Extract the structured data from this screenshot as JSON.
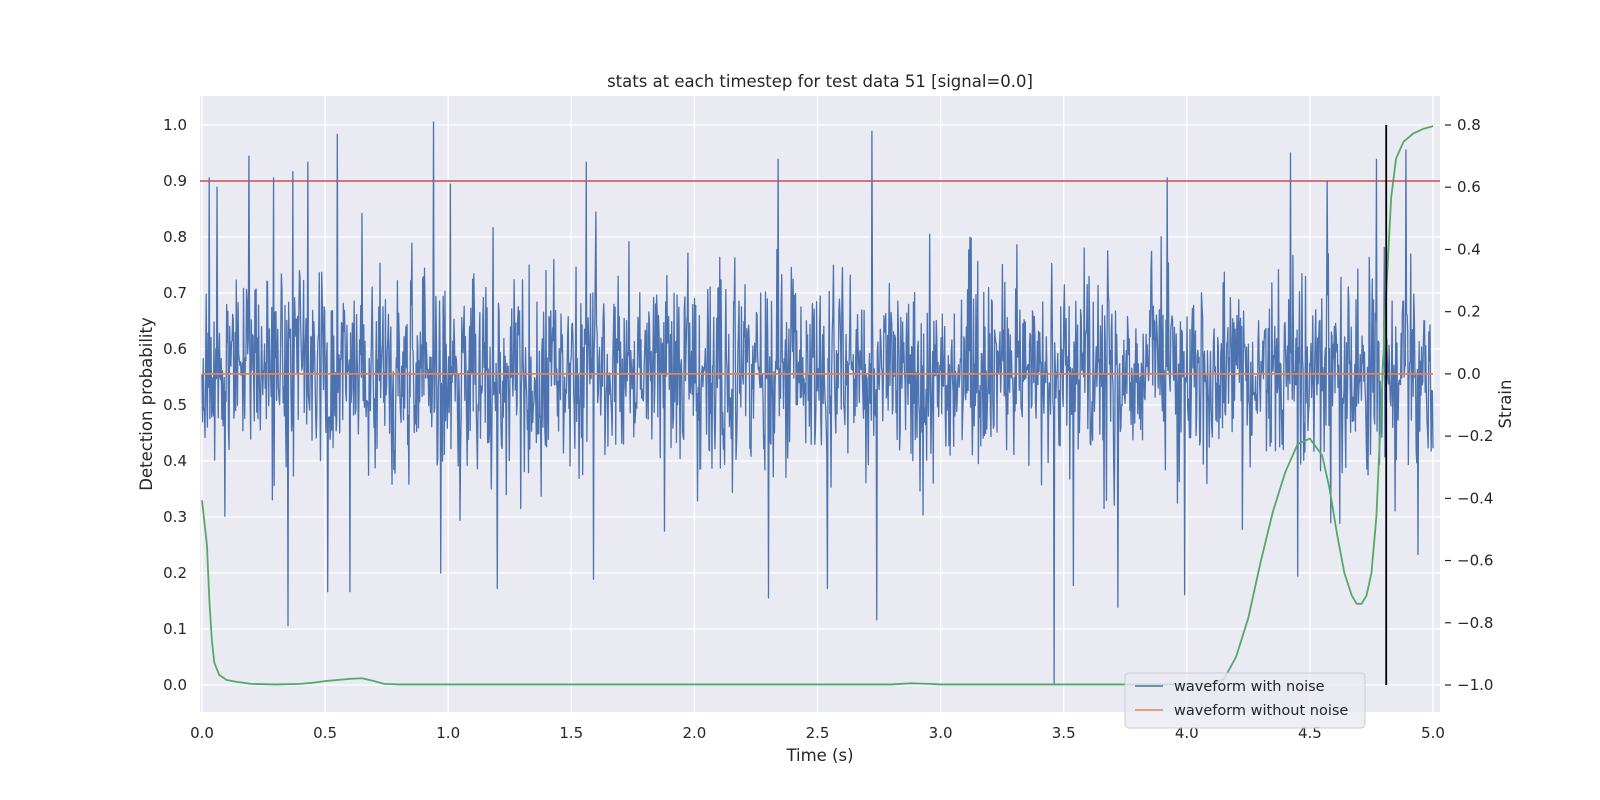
{
  "chart_data": {
    "type": "line",
    "title": "stats at each timestep for test data 51 [signal=0.0]",
    "xlabel": "Time (s)",
    "ylabel": "Detection probability",
    "y2label": "Strain",
    "xlim": [
      0.0,
      5.0
    ],
    "ylim": [
      0.0,
      1.0
    ],
    "y2lim": [
      -1.0,
      0.8
    ],
    "xticks": [
      "0.0",
      "0.5",
      "1.0",
      "1.5",
      "2.0",
      "2.5",
      "3.0",
      "3.5",
      "4.0",
      "4.5",
      "5.0"
    ],
    "yticks": [
      "0.0",
      "0.1",
      "0.2",
      "0.3",
      "0.4",
      "0.5",
      "0.6",
      "0.7",
      "0.8",
      "0.9",
      "1.0"
    ],
    "y2ticks": [
      "−1.0",
      "−0.8",
      "−0.6",
      "−0.4",
      "−0.2",
      "0.0",
      "0.2",
      "0.4",
      "0.6",
      "0.8"
    ],
    "grid": true,
    "legend_position": "lower-right",
    "colors": {
      "noisy": "#4c72b0",
      "clean": "#dd8452",
      "probability": "#55a868",
      "threshold": "#c44e52",
      "marker": "#000000",
      "background": "#eaeaf2"
    },
    "threshold": 0.9,
    "marker_time": 4.81,
    "series": [
      {
        "name": "waveform with noise",
        "axis": "right",
        "noise_sd": 0.16,
        "spikes": [
          {
            "x": 0.03,
            "y": 0.63
          },
          {
            "x": 0.06,
            "y": 0.6
          },
          {
            "x": 0.19,
            "y": 0.7
          },
          {
            "x": 0.29,
            "y": 0.63
          },
          {
            "x": 0.35,
            "y": -0.81
          },
          {
            "x": 0.37,
            "y": 0.65
          },
          {
            "x": 0.43,
            "y": 0.68
          },
          {
            "x": 0.51,
            "y": -0.7
          },
          {
            "x": 0.55,
            "y": 0.77
          },
          {
            "x": 0.6,
            "y": -0.7
          },
          {
            "x": 0.94,
            "y": 0.81
          },
          {
            "x": 0.97,
            "y": -0.64
          },
          {
            "x": 1.01,
            "y": 0.61
          },
          {
            "x": 1.2,
            "y": -0.69
          },
          {
            "x": 1.56,
            "y": 0.68
          },
          {
            "x": 1.59,
            "y": -0.66
          },
          {
            "x": 2.3,
            "y": -0.72
          },
          {
            "x": 2.34,
            "y": 0.69
          },
          {
            "x": 2.54,
            "y": -0.69
          },
          {
            "x": 2.72,
            "y": 0.78
          },
          {
            "x": 2.74,
            "y": -0.79
          },
          {
            "x": 3.46,
            "y": -1.0
          },
          {
            "x": 3.54,
            "y": -0.68
          },
          {
            "x": 3.72,
            "y": -0.75
          },
          {
            "x": 3.92,
            "y": 0.63
          },
          {
            "x": 3.99,
            "y": -0.71
          },
          {
            "x": 4.42,
            "y": 0.71
          },
          {
            "x": 4.45,
            "y": -0.65
          },
          {
            "x": 4.57,
            "y": 0.62
          },
          {
            "x": 4.77,
            "y": 0.69
          },
          {
            "x": 4.89,
            "y": 0.72
          },
          {
            "x": 4.94,
            "y": -0.58
          }
        ]
      },
      {
        "name": "waveform without noise",
        "axis": "right",
        "y_constant": 0.0
      },
      {
        "axis": "left",
        "points": [
          [
            0.0,
            0.33
          ],
          [
            0.02,
            0.25
          ],
          [
            0.03,
            0.15
          ],
          [
            0.04,
            0.08
          ],
          [
            0.05,
            0.04
          ],
          [
            0.07,
            0.018
          ],
          [
            0.1,
            0.009
          ],
          [
            0.15,
            0.005
          ],
          [
            0.2,
            0.002
          ],
          [
            0.3,
            0.001
          ],
          [
            0.4,
            0.002
          ],
          [
            0.45,
            0.004
          ],
          [
            0.5,
            0.007
          ],
          [
            0.55,
            0.009
          ],
          [
            0.6,
            0.011
          ],
          [
            0.65,
            0.012
          ],
          [
            0.7,
            0.007
          ],
          [
            0.74,
            0.002
          ],
          [
            0.8,
            0.001
          ],
          [
            1.5,
            0.001
          ],
          [
            2.5,
            0.001
          ],
          [
            2.8,
            0.001
          ],
          [
            2.88,
            0.003
          ],
          [
            2.95,
            0.002
          ],
          [
            3.0,
            0.001
          ],
          [
            3.5,
            0.001
          ],
          [
            3.9,
            0.001
          ],
          [
            4.1,
            0.002
          ],
          [
            4.15,
            0.01
          ],
          [
            4.2,
            0.05
          ],
          [
            4.25,
            0.12
          ],
          [
            4.3,
            0.22
          ],
          [
            4.35,
            0.31
          ],
          [
            4.4,
            0.38
          ],
          [
            4.45,
            0.43
          ],
          [
            4.5,
            0.44
          ],
          [
            4.55,
            0.41
          ],
          [
            4.58,
            0.35
          ],
          [
            4.61,
            0.27
          ],
          [
            4.64,
            0.2
          ],
          [
            4.67,
            0.16
          ],
          [
            4.69,
            0.145
          ],
          [
            4.71,
            0.145
          ],
          [
            4.73,
            0.16
          ],
          [
            4.75,
            0.2
          ],
          [
            4.77,
            0.3
          ],
          [
            4.79,
            0.5
          ],
          [
            4.81,
            0.7
          ],
          [
            4.83,
            0.87
          ],
          [
            4.85,
            0.94
          ],
          [
            4.88,
            0.97
          ],
          [
            4.92,
            0.985
          ],
          [
            4.96,
            0.993
          ],
          [
            5.0,
            0.998
          ]
        ]
      }
    ]
  }
}
